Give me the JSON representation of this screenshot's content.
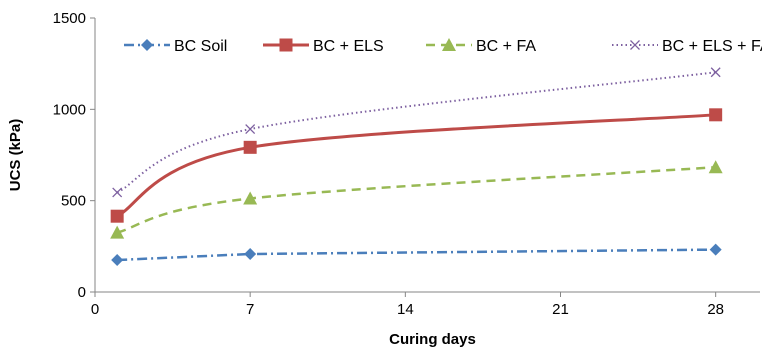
{
  "chart_data": {
    "type": "line",
    "title": "",
    "xlabel": "Curing days",
    "ylabel": "UCS (kPa)",
    "xlim": [
      0,
      30
    ],
    "ylim": [
      0,
      1500
    ],
    "xticks": [
      0,
      7,
      14,
      21,
      28
    ],
    "yticks": [
      0,
      500,
      1000,
      1500
    ],
    "legend_position": "top",
    "grid": false,
    "series": [
      {
        "name": "BC Soil",
        "color": "#4a7ebb",
        "dash": "dashdot",
        "marker": "diamond",
        "smooth": false,
        "x": [
          1,
          7,
          28
        ],
        "y": [
          175,
          208,
          232
        ]
      },
      {
        "name": "BC + ELS",
        "color": "#be4b48",
        "dash": "solid",
        "marker": "square",
        "smooth": true,
        "x": [
          1,
          7,
          28
        ],
        "y": [
          415,
          792,
          970
        ]
      },
      {
        "name": "BC + FA",
        "color": "#98b954",
        "dash": "dash",
        "marker": "triangle",
        "smooth": true,
        "x": [
          1,
          7,
          28
        ],
        "y": [
          325,
          512,
          683
        ]
      },
      {
        "name": "BC + ELS + FA",
        "color": "#7d60a0",
        "dash": "dot",
        "marker": "x",
        "smooth": true,
        "x": [
          1,
          7,
          28
        ],
        "y": [
          545,
          892,
          1203
        ]
      }
    ]
  }
}
